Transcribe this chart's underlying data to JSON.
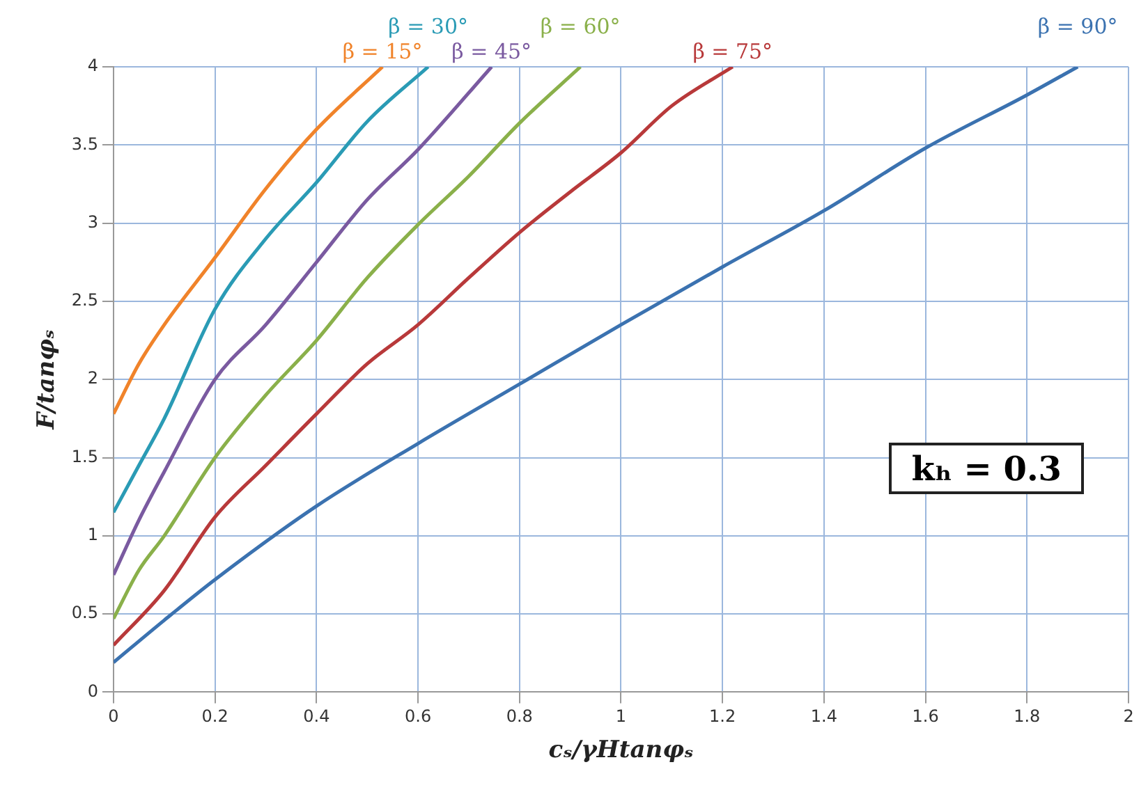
{
  "chart_data": {
    "type": "line",
    "xlabel": "cₛ/γHtanφₛ",
    "ylabel": "F/tanφₛ",
    "xlim": [
      0,
      2
    ],
    "xticks": [
      0,
      0.2,
      0.4,
      0.6,
      0.8,
      1,
      1.2,
      1.4,
      1.6,
      1.8,
      2
    ],
    "ylim": [
      0,
      4
    ],
    "yticks": [
      0,
      0.5,
      1,
      1.5,
      2,
      2.5,
      3,
      3.5,
      4
    ],
    "grid": true,
    "line_style": "solid",
    "series": [
      {
        "name": "β = 15°",
        "color": "#f0832a",
        "x": [
          0,
          0.05,
          0.1,
          0.2,
          0.3,
          0.4,
          0.53
        ],
        "values": [
          1.78,
          2.1,
          2.35,
          2.78,
          3.22,
          3.6,
          4
        ]
      },
      {
        "name": "β = 30°",
        "color": "#2a9bb5",
        "x": [
          0,
          0.05,
          0.1,
          0.2,
          0.3,
          0.4,
          0.5,
          0.62
        ],
        "values": [
          1.15,
          1.45,
          1.75,
          2.45,
          2.9,
          3.26,
          3.65,
          4
        ]
      },
      {
        "name": "β = 45°",
        "color": "#7a5aa0",
        "x": [
          0,
          0.05,
          0.1,
          0.2,
          0.3,
          0.4,
          0.5,
          0.6,
          0.745
        ],
        "values": [
          0.75,
          1.1,
          1.41,
          2.0,
          2.35,
          2.75,
          3.15,
          3.47,
          4
        ]
      },
      {
        "name": "β = 60°",
        "color": "#8ab04a",
        "x": [
          0,
          0.05,
          0.1,
          0.2,
          0.3,
          0.4,
          0.5,
          0.6,
          0.7,
          0.8,
          0.92
        ],
        "values": [
          0.47,
          0.78,
          1.0,
          1.5,
          1.9,
          2.25,
          2.65,
          2.99,
          3.3,
          3.64,
          4
        ]
      },
      {
        "name": "β = 75°",
        "color": "#b8393a",
        "x": [
          0,
          0.1,
          0.2,
          0.3,
          0.4,
          0.5,
          0.6,
          0.7,
          0.8,
          0.9,
          1,
          1.1,
          1.22
        ],
        "values": [
          0.3,
          0.65,
          1.12,
          1.45,
          1.78,
          2.1,
          2.35,
          2.65,
          2.94,
          3.2,
          3.45,
          3.75,
          4
        ]
      },
      {
        "name": "β = 90°",
        "color": "#3b72b0",
        "x": [
          0,
          0.1,
          0.2,
          0.4,
          0.6,
          0.8,
          1,
          1.2,
          1.4,
          1.6,
          1.8,
          1.9
        ],
        "values": [
          0.19,
          0.46,
          0.72,
          1.19,
          1.59,
          1.97,
          2.35,
          2.72,
          3.08,
          3.48,
          3.82,
          4
        ]
      }
    ],
    "annotations": [
      "kₕ = 0.3"
    ]
  }
}
